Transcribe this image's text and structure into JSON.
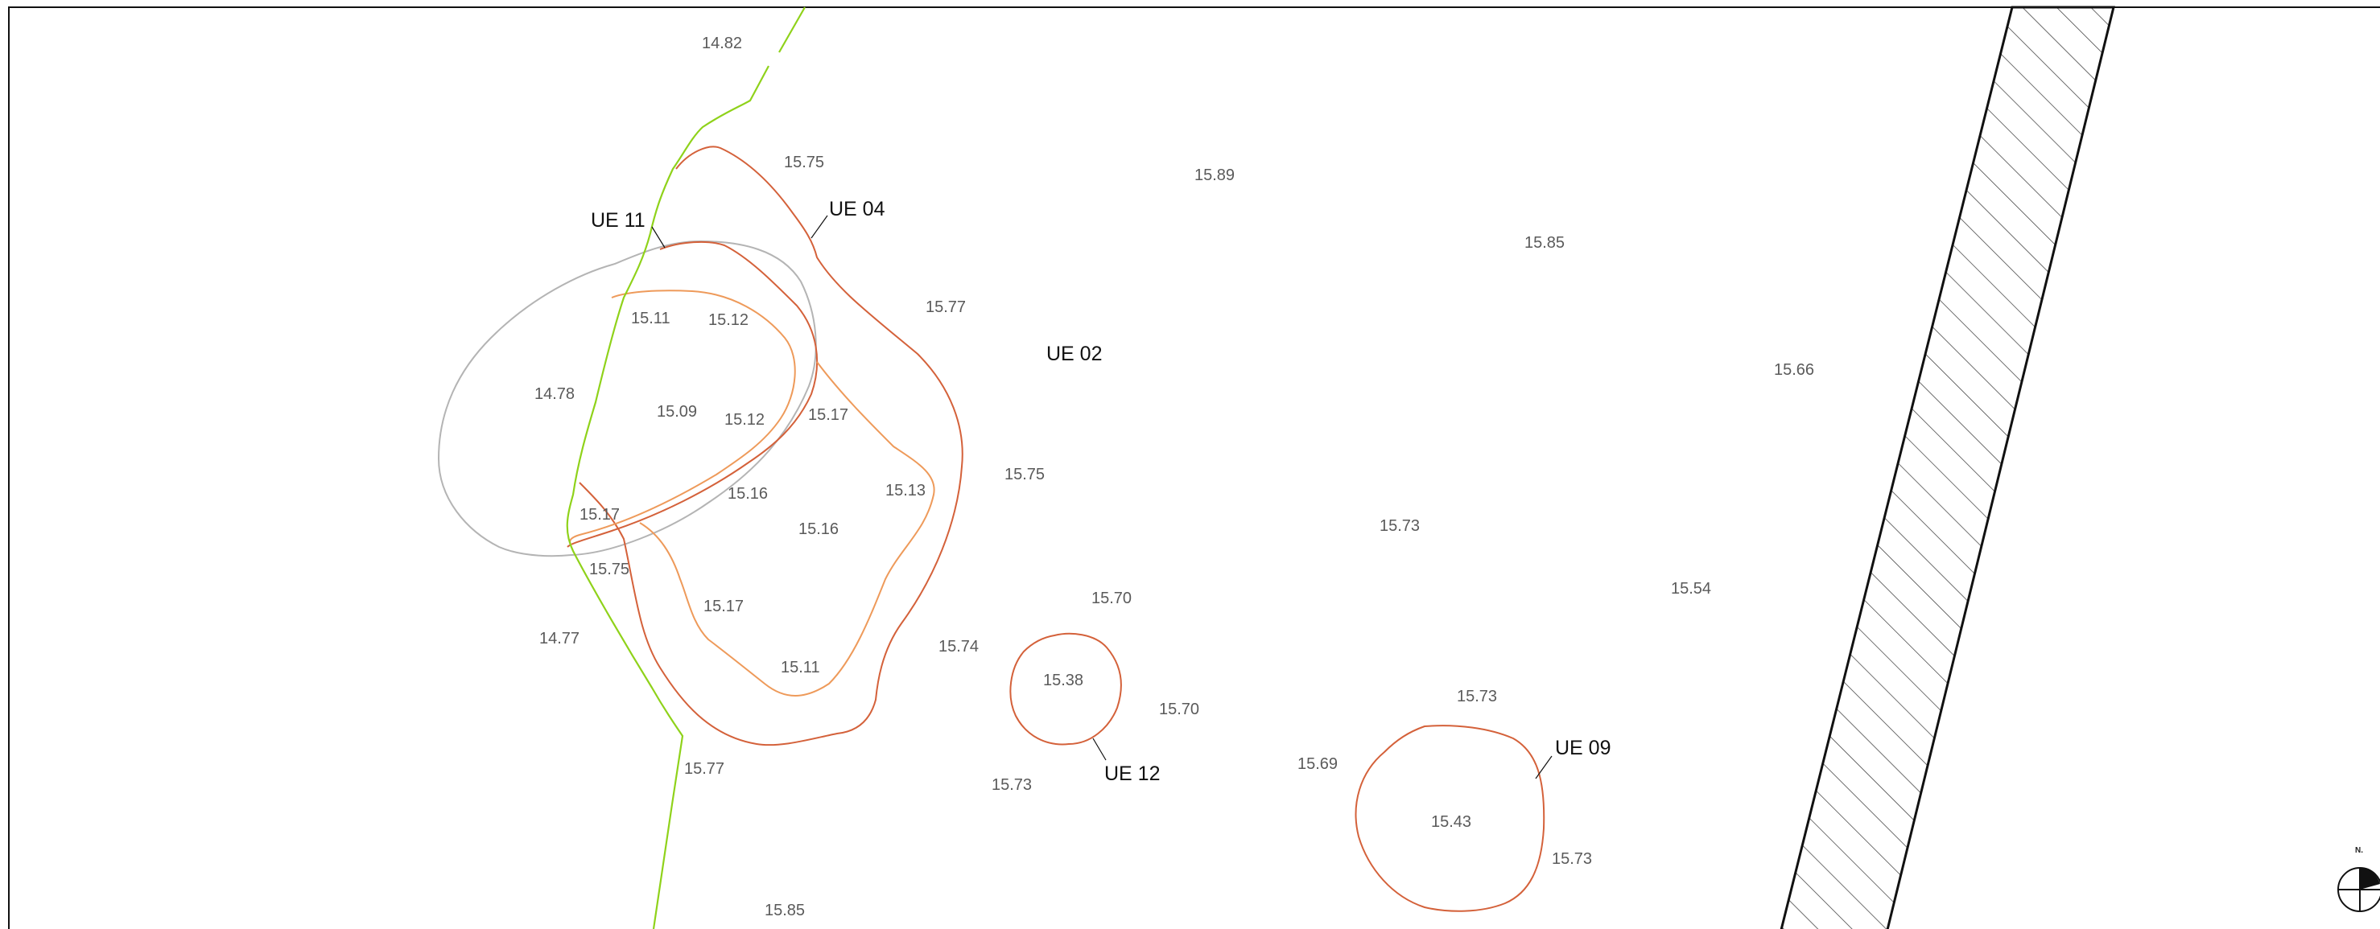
{
  "colors": {
    "background": "#ffffff",
    "frame": "#111111",
    "cut_outline": "#d4613a",
    "cut_inner": "#ee9a5a",
    "section_line": "#8fd21a",
    "grey_outline": "#b4b4b4",
    "hatch": "#333333",
    "elevation_text": "#5a5a5a",
    "label_text": "#111111"
  },
  "units": {
    "ue02": "UE 02",
    "ue04": "UE 04",
    "ue09": "UE 09",
    "ue11": "UE 11",
    "ue12": "UE 12"
  },
  "elevations": [
    "14.82",
    "15.75",
    "15.89",
    "15.85",
    "15.77",
    "15.11",
    "15.12",
    "15.66",
    "14.78",
    "15.09",
    "15.12",
    "15.17",
    "15.13",
    "15.75",
    "15.16",
    "15.17",
    "15.16",
    "15.73",
    "15.75",
    "15.54",
    "15.70",
    "14.77",
    "15.17",
    "15.74",
    "15.11",
    "15.38",
    "15.70",
    "15.73",
    "15.77",
    "15.69",
    "15.73",
    "15.43",
    "15.73",
    "15.85"
  ],
  "north_arrow": {
    "label": "N.",
    "icon": "north-arrow-icon"
  }
}
